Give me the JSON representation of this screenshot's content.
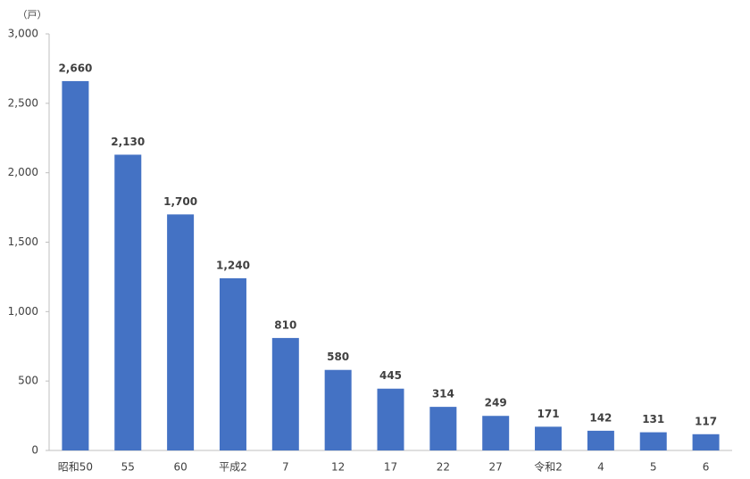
{
  "chart_data": {
    "type": "bar",
    "unit": "（戸）",
    "categories": [
      "昭和50",
      "55",
      "60",
      "平成2",
      "7",
      "12",
      "17",
      "22",
      "27",
      "令和2",
      "4",
      "5",
      "6"
    ],
    "values": [
      2660,
      2130,
      1700,
      1240,
      810,
      580,
      445,
      314,
      249,
      171,
      142,
      131,
      117
    ],
    "value_labels": [
      "2,660",
      "2,130",
      "1,700",
      "1,240",
      "810",
      "580",
      "445",
      "314",
      "249",
      "171",
      "142",
      "131",
      "117"
    ],
    "color": "#4472c4",
    "ylim": [
      0,
      3000
    ],
    "yticks": [
      0,
      500,
      {
        "value": 1000,
        "label": "1,000"
      },
      {
        "value": 1500,
        "label": "1,500"
      },
      {
        "value": 2000,
        "label": "2,000"
      },
      {
        "value": 2500,
        "label": "2,500"
      },
      {
        "value": 3000,
        "label": "3,000"
      }
    ],
    "grid": false
  }
}
